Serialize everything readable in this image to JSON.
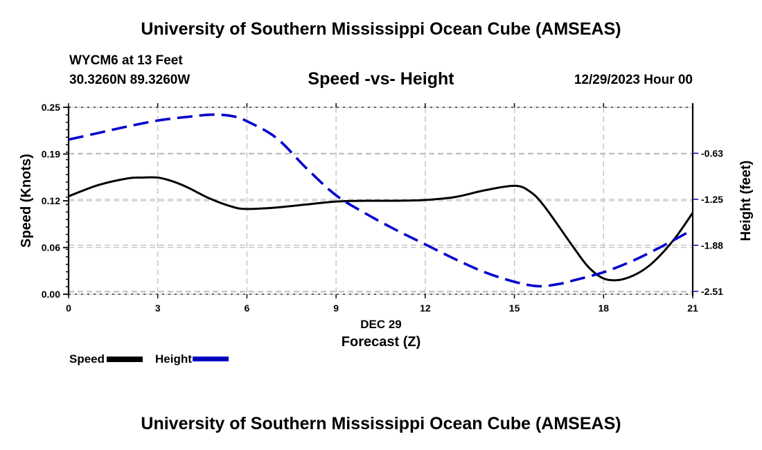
{
  "header": {
    "main_title": "University of Southern Mississippi Ocean Cube (AMSEAS)",
    "station_label": "WYCM6 at 13 Feet",
    "coordinates": "30.3260N  89.3260W",
    "datetime": "12/29/2023 Hour 00"
  },
  "footer": {
    "title": "University of Southern Mississippi Ocean Cube (AMSEAS)"
  },
  "legend": {
    "items": [
      {
        "label": "Speed",
        "color": "#000000",
        "style": "solid"
      },
      {
        "label": "Height",
        "color": "#0000cc",
        "style": "dashed"
      }
    ]
  },
  "chart_data": {
    "type": "line",
    "title": "Speed -vs- Height",
    "xlabel": "Forecast (Z)",
    "xlabel_date": "DEC 29",
    "ylabel": "Speed (Knots)",
    "y2label": "Height (feet)",
    "xlim": [
      0,
      21
    ],
    "ylim": [
      0,
      0.25
    ],
    "y2lim": [
      -2.55,
      0.0
    ],
    "x_ticks": [
      0,
      3,
      6,
      9,
      12,
      15,
      18,
      21
    ],
    "y_ticks": [
      "0.00",
      "0.06",
      "0.12",
      "0.19",
      "0.25"
    ],
    "y_tick_values": [
      0.0,
      0.0625,
      0.125,
      0.1875,
      0.25
    ],
    "y2_ticks": [
      "-0.63",
      "-1.25",
      "-1.88",
      "-2.51"
    ],
    "y2_tick_values": [
      -0.6275,
      -1.255,
      -1.8825,
      -2.51
    ],
    "grid": true,
    "legend_position": "bottom-left",
    "series": [
      {
        "name": "Speed",
        "axis": "left",
        "color": "#000000",
        "style": "solid",
        "x": [
          0,
          1,
          2,
          2.5,
          3,
          3.5,
          4,
          4.75,
          5.5,
          6,
          7,
          8,
          9,
          10,
          11,
          12,
          13,
          14,
          15,
          15.5,
          16,
          17,
          17.5,
          18,
          18.5,
          19,
          19.5,
          20,
          20.5,
          21
        ],
        "values": [
          0.131,
          0.146,
          0.155,
          0.156,
          0.156,
          0.151,
          0.143,
          0.128,
          0.117,
          0.114,
          0.116,
          0.12,
          0.124,
          0.125,
          0.125,
          0.126,
          0.13,
          0.139,
          0.145,
          0.138,
          0.118,
          0.062,
          0.036,
          0.021,
          0.019,
          0.025,
          0.037,
          0.056,
          0.08,
          0.109
        ]
      },
      {
        "name": "Height",
        "axis": "right",
        "color": "#0000cc",
        "style": "dashed",
        "x": [
          0,
          1,
          2,
          3,
          4,
          4.85,
          5.5,
          6,
          7,
          8,
          9,
          10,
          11,
          12,
          13,
          14,
          15,
          15.8,
          16.5,
          17,
          18,
          19,
          20,
          21
        ],
        "values": [
          -0.44,
          -0.35,
          -0.26,
          -0.18,
          -0.13,
          -0.1,
          -0.12,
          -0.19,
          -0.42,
          -0.83,
          -1.2,
          -1.45,
          -1.67,
          -1.87,
          -2.07,
          -2.25,
          -2.38,
          -2.44,
          -2.41,
          -2.36,
          -2.25,
          -2.09,
          -1.89,
          -1.67
        ]
      }
    ]
  }
}
